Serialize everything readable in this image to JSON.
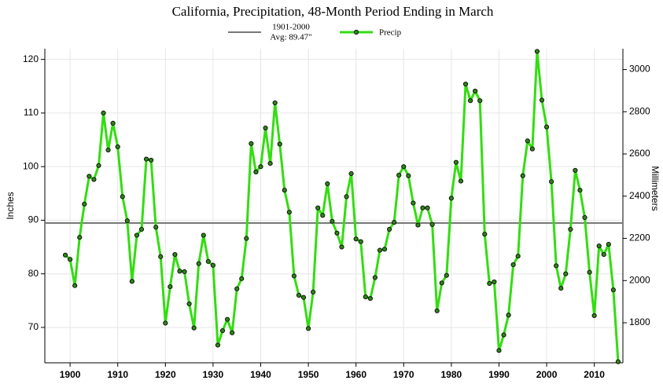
{
  "chart_data": {
    "type": "line",
    "title": "California, Precipitation, 48-Month Period Ending in March",
    "y_label": "Inches",
    "y2_label": "Millimeters",
    "x": [
      1899,
      1900,
      1901,
      1902,
      1903,
      1904,
      1905,
      1906,
      1907,
      1908,
      1909,
      1910,
      1911,
      1912,
      1913,
      1914,
      1915,
      1916,
      1917,
      1918,
      1919,
      1920,
      1921,
      1922,
      1923,
      1924,
      1925,
      1926,
      1927,
      1928,
      1929,
      1930,
      1931,
      1932,
      1933,
      1934,
      1935,
      1936,
      1937,
      1938,
      1939,
      1940,
      1941,
      1942,
      1943,
      1944,
      1945,
      1946,
      1947,
      1948,
      1949,
      1950,
      1951,
      1952,
      1953,
      1954,
      1955,
      1956,
      1957,
      1958,
      1959,
      1960,
      1961,
      1962,
      1963,
      1964,
      1965,
      1966,
      1967,
      1968,
      1969,
      1970,
      1971,
      1972,
      1973,
      1974,
      1975,
      1976,
      1977,
      1978,
      1979,
      1980,
      1981,
      1982,
      1983,
      1984,
      1985,
      1986,
      1987,
      1988,
      1989,
      1990,
      1991,
      1992,
      1993,
      1994,
      1995,
      1996,
      1997,
      1998,
      1999,
      2000,
      2001,
      2002,
      2003,
      2004,
      2005,
      2006,
      2007,
      2008,
      2009,
      2010,
      2011,
      2012,
      2013,
      2014,
      2015
    ],
    "series": [
      {
        "name": "Precip",
        "color": "#33dd11",
        "values": [
          83.5,
          82.7,
          77.8,
          86.8,
          93,
          98.2,
          97.6,
          100.2,
          110,
          103.1,
          108.1,
          103.7,
          94.4,
          89.9,
          78.6,
          87.2,
          88.3,
          101.4,
          101.2,
          88.7,
          83.2,
          70.8,
          77.6,
          83.6,
          80.5,
          80.4,
          74.4,
          69.9,
          81.9,
          87.2,
          82.3,
          81.6,
          66.7,
          69.4,
          71.5,
          69,
          77.2,
          79.1,
          86.6,
          104.3,
          99,
          100,
          107.2,
          100.6,
          111.9,
          104.2,
          95.6,
          91.5,
          79.6,
          76,
          75.6,
          69.8,
          76.6,
          92.3,
          90.9,
          96.8,
          89.8,
          87.6,
          85,
          94.4,
          98.7,
          86.5,
          86,
          75.7,
          75.4,
          79.3,
          84.4,
          84.6,
          88.3,
          89.6,
          98.4,
          100,
          98.3,
          93.2,
          89.1,
          92.3,
          92.3,
          89.2,
          73.1,
          78.3,
          79.7,
          94.1,
          100.8,
          97.3,
          115.4,
          112.3,
          114.1,
          112.3,
          87.4,
          78.2,
          78.5,
          65.7,
          68.6,
          72.3,
          81.7,
          83.3,
          98.3,
          104.8,
          103.3,
          121.5,
          112.4,
          107.4,
          97.2,
          81.5,
          77.3,
          80,
          88.3,
          99.3,
          95.6,
          90.5,
          80.3,
          72.2,
          85.2,
          83.6,
          85.5,
          77,
          63.6
        ]
      }
    ],
    "reference_line": {
      "value": 89.47,
      "color": "#777777",
      "labels": [
        "1901-2000",
        "Avg: 89.47\""
      ]
    },
    "xlim": [
      1894.7,
      2016
    ],
    "xticks": [
      1900,
      1910,
      1920,
      1930,
      1940,
      1950,
      1960,
      1970,
      1980,
      1990,
      2000,
      2010
    ],
    "ylim": [
      63.4,
      122
    ],
    "yticks": [
      70,
      80,
      90,
      100,
      110,
      120
    ],
    "y2lim": [
      1610.36,
      3098.8
    ],
    "y2ticks": [
      1800,
      2000,
      2200,
      2400,
      2600,
      2800,
      3000
    ],
    "grid": true
  }
}
